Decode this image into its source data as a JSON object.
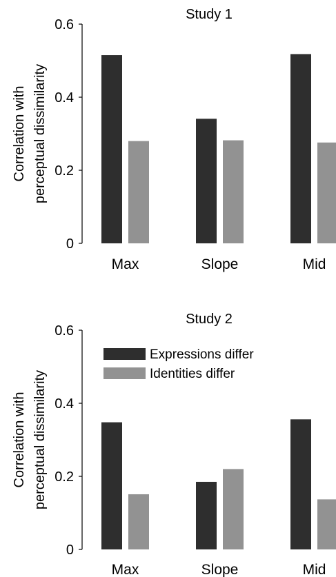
{
  "colors": {
    "expressions": "#2e2e2e",
    "identities": "#929292",
    "axis": "#000000"
  },
  "legend": {
    "placement": "upper-left",
    "entries": [
      {
        "label": "Expressions differ",
        "color": "#2e2e2e"
      },
      {
        "label": "Identities differ",
        "color": "#929292"
      }
    ]
  },
  "chart_data": [
    {
      "type": "bar",
      "title": "Study 1",
      "ylabel": [
        "Correlation with",
        "perceptual dissimilarity"
      ],
      "xlabel": "",
      "categories": [
        "Max",
        "Slope",
        "Mid"
      ],
      "ylim": [
        0,
        0.6
      ],
      "yticks": [
        0,
        0.2,
        0.4,
        0.6
      ],
      "ytick_labels": [
        "0",
        "0.2",
        "0.4",
        "0.6"
      ],
      "grid": false,
      "legend": false,
      "series": [
        {
          "key": "expressions",
          "values": [
            0.515,
            0.341,
            0.518
          ]
        },
        {
          "key": "identities",
          "values": [
            0.28,
            0.282,
            0.276
          ]
        }
      ]
    },
    {
      "type": "bar",
      "title": "Study 2",
      "ylabel": [
        "Correlation with",
        "perceptual dissimilarity"
      ],
      "xlabel": "",
      "categories": [
        "Max",
        "Slope",
        "Mid"
      ],
      "ylim": [
        0,
        0.6
      ],
      "yticks": [
        0,
        0.2,
        0.4,
        0.6
      ],
      "ytick_labels": [
        "0",
        "0.2",
        "0.4",
        "0.6"
      ],
      "grid": false,
      "legend": true,
      "series": [
        {
          "key": "expressions",
          "name": "Expressions differ",
          "values": [
            0.348,
            0.185,
            0.356
          ]
        },
        {
          "key": "identities",
          "name": "Identities differ",
          "values": [
            0.151,
            0.22,
            0.137
          ]
        }
      ]
    }
  ]
}
